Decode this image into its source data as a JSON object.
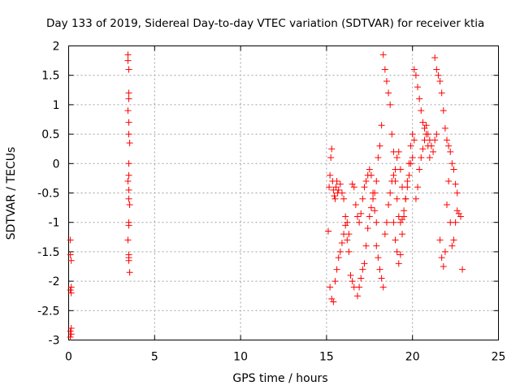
{
  "chart_data": {
    "type": "scatter",
    "title": "Day 133 of 2019, Sidereal Day-to-day VTEC variation (SDTVAR) for receiver ktia",
    "xlabel": "GPS time / hours",
    "ylabel": "SDTVAR / TECUs",
    "xlim": [
      0,
      25
    ],
    "ylim": [
      -3,
      2
    ],
    "x_ticks": [
      0,
      5,
      10,
      15,
      20,
      25
    ],
    "x_tick_labels": [
      "0",
      "5",
      "10",
      "15",
      "20",
      "25"
    ],
    "y_ticks": [
      2,
      1.5,
      1,
      0.5,
      0,
      -0.5,
      -1,
      -1.5,
      -2,
      -2.5,
      -3
    ],
    "y_tick_labels": [
      "2",
      "1.5",
      "1",
      "0.5",
      "0",
      "-0.5",
      "-1",
      "-1.5",
      "-2",
      "-2.5",
      "-3"
    ],
    "grid": true,
    "marker": "+",
    "series_color": "#ff0000",
    "series": [
      {
        "name": "SDTVAR",
        "x": [
          0.1,
          0.1,
          0.15,
          0.15,
          0.1,
          0.15,
          0.15,
          0.1,
          0.15,
          0.1,
          3.45,
          3.45,
          3.5,
          3.5,
          3.5,
          3.45,
          3.5,
          3.5,
          3.55,
          3.5,
          3.5,
          3.45,
          3.5,
          3.5,
          3.55,
          3.5,
          3.5,
          3.45,
          3.5,
          3.5,
          3.5,
          3.55,
          15.1,
          15.15,
          15.2,
          15.25,
          15.3,
          15.35,
          15.4,
          15.45,
          15.5,
          15.55,
          15.6,
          15.65,
          15.7,
          15.8,
          15.9,
          16.0,
          16.1,
          16.2,
          16.3,
          15.2,
          15.3,
          15.4,
          15.5,
          15.6,
          15.7,
          15.8,
          15.9,
          16.0,
          16.1,
          16.2,
          16.3,
          16.4,
          16.5,
          16.6,
          16.5,
          16.6,
          16.7,
          16.8,
          16.9,
          17.0,
          17.1,
          17.2,
          17.3,
          17.4,
          17.5,
          17.6,
          17.7,
          17.8,
          17.9,
          16.8,
          16.9,
          17.0,
          17.1,
          17.2,
          17.3,
          17.4,
          17.5,
          17.6,
          17.7,
          17.8,
          17.9,
          18.0,
          18.1,
          18.2,
          17.9,
          18.0,
          18.1,
          18.2,
          18.3,
          18.4,
          18.5,
          18.6,
          18.7,
          18.8,
          18.9,
          19.0,
          19.1,
          19.2,
          19.3,
          19.4,
          18.3,
          18.4,
          18.5,
          18.6,
          18.7,
          18.8,
          18.9,
          19.0,
          19.1,
          19.2,
          19.3,
          19.4,
          19.5,
          19.6,
          19.7,
          19.8,
          19.9,
          20.0,
          18.9,
          19.0,
          19.1,
          19.2,
          19.3,
          19.4,
          19.5,
          19.6,
          19.7,
          19.8,
          19.9,
          20.0,
          20.1,
          20.1,
          20.2,
          20.3,
          20.4,
          20.5,
          20.6,
          20.7,
          20.8,
          20.9,
          21.0,
          21.1,
          21.2,
          21.3,
          21.4,
          20.2,
          20.3,
          20.4,
          20.5,
          20.6,
          20.7,
          20.8,
          20.9,
          21.0,
          21.3,
          21.4,
          21.5,
          21.6,
          21.7,
          21.8,
          21.9,
          22.0,
          22.1,
          22.2,
          22.3,
          22.4,
          22.5,
          22.6,
          21.6,
          21.7,
          21.8,
          21.9,
          22.0,
          22.1,
          22.2,
          22.3,
          22.4,
          22.5,
          22.6,
          22.7,
          22.8,
          22.9
        ],
        "y": [
          -1.3,
          -1.55,
          -1.65,
          -2.1,
          -2.15,
          -2.2,
          -2.8,
          -2.85,
          -2.9,
          -2.95,
          1.85,
          1.75,
          1.6,
          1.2,
          1.1,
          0.9,
          0.7,
          0.5,
          0.35,
          0.0,
          -0.2,
          -0.3,
          -0.45,
          -0.6,
          -0.7,
          -1.0,
          -1.05,
          -1.3,
          -1.55,
          -1.6,
          -1.65,
          -1.85,
          -1.15,
          -0.4,
          -0.2,
          0.1,
          0.25,
          -0.3,
          -0.45,
          -0.55,
          -0.6,
          -0.4,
          -0.3,
          -0.5,
          -0.45,
          -0.35,
          -0.5,
          -0.6,
          -0.9,
          -1.0,
          -1.2,
          -2.1,
          -2.3,
          -2.35,
          -2.0,
          -1.8,
          -1.6,
          -1.5,
          -1.35,
          -1.2,
          -1.05,
          -1.3,
          -1.5,
          -1.9,
          -2.0,
          -2.1,
          -0.35,
          -0.4,
          -0.7,
          -0.9,
          -1.0,
          -0.85,
          -0.6,
          -0.4,
          -0.3,
          -0.2,
          -0.1,
          -0.2,
          -0.5,
          -0.8,
          -1.0,
          -2.25,
          -2.1,
          -1.95,
          -1.8,
          -1.7,
          -1.4,
          -1.1,
          -0.9,
          -0.75,
          -0.6,
          -0.5,
          -0.3,
          0.1,
          0.3,
          0.65,
          -1.4,
          -1.6,
          -1.8,
          -1.95,
          -2.1,
          -1.2,
          -1.0,
          -0.7,
          -0.5,
          -0.3,
          -0.2,
          -0.1,
          0.1,
          0.2,
          -0.1,
          -0.4,
          1.85,
          1.6,
          1.4,
          1.2,
          1.0,
          0.5,
          0.2,
          -0.3,
          -0.6,
          -0.9,
          -1.0,
          -0.95,
          -0.8,
          -0.6,
          -0.4,
          -0.2,
          0.0,
          0.1,
          -1.0,
          -1.3,
          -1.5,
          -1.7,
          -1.55,
          -1.2,
          -0.9,
          -0.6,
          -0.3,
          0.0,
          0.3,
          0.5,
          0.4,
          1.6,
          1.5,
          1.3,
          1.1,
          0.9,
          0.7,
          0.6,
          0.65,
          0.5,
          0.4,
          0.3,
          0.2,
          0.4,
          0.5,
          -0.6,
          -0.4,
          -0.1,
          0.1,
          0.25,
          0.4,
          0.5,
          0.3,
          0.1,
          1.8,
          1.6,
          1.5,
          1.4,
          1.2,
          0.9,
          0.6,
          0.4,
          0.3,
          0.2,
          0.0,
          -0.1,
          -0.35,
          -0.5,
          -1.3,
          -1.6,
          -1.75,
          -1.5,
          -0.7,
          -0.3,
          -1.0,
          -1.4,
          -1.3,
          -1.0,
          -0.8,
          -0.85,
          -0.9,
          -1.8
        ]
      }
    ]
  }
}
